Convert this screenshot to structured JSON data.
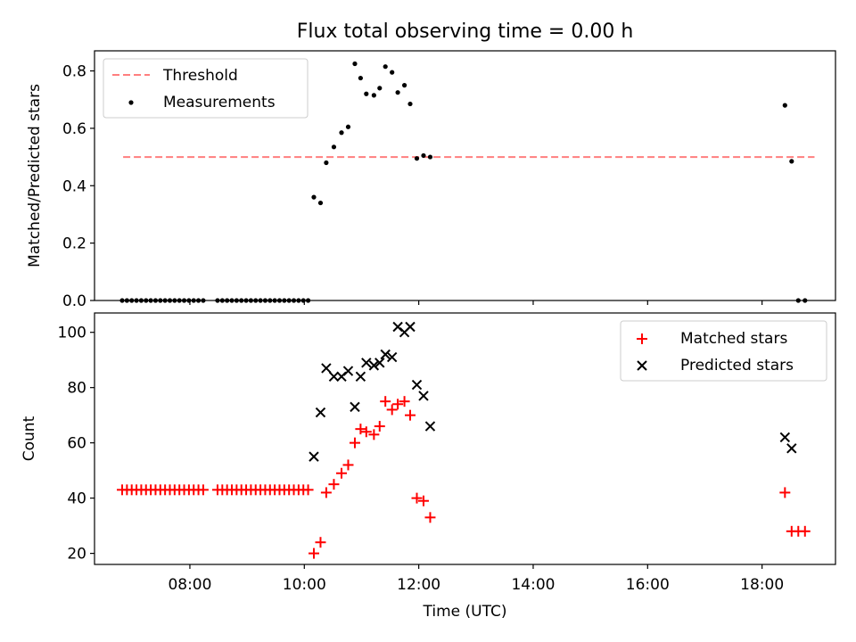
{
  "chart_data": [
    {
      "type": "scatter",
      "title": "Flux total observing time = 0.00 h",
      "ylabel": "Matched/Predicted stars",
      "xlabel": "",
      "xlim": [
        "06:20",
        "19:17"
      ],
      "ylim": [
        0,
        0.87
      ],
      "yticks": [
        "0.0",
        "0.2",
        "0.4",
        "0.6",
        "0.8"
      ],
      "legend_position": "top-left",
      "threshold": {
        "name": "Threshold",
        "value": 0.5,
        "x_range": [
          "06:50",
          "18:55"
        ],
        "color": "#ff7f7f",
        "style": "dashed"
      },
      "series": [
        {
          "name": "Measurements",
          "marker": "dot",
          "color": "#000000",
          "points": [
            [
              "06:49",
              0
            ],
            [
              "06:54",
              0
            ],
            [
              "06:59",
              0
            ],
            [
              "07:04",
              0
            ],
            [
              "07:09",
              0
            ],
            [
              "07:14",
              0
            ],
            [
              "07:19",
              0
            ],
            [
              "07:24",
              0
            ],
            [
              "07:29",
              0
            ],
            [
              "07:34",
              0
            ],
            [
              "07:39",
              0
            ],
            [
              "07:44",
              0
            ],
            [
              "07:49",
              0
            ],
            [
              "07:54",
              0
            ],
            [
              "07:59",
              0
            ],
            [
              "08:04",
              0
            ],
            [
              "08:09",
              0
            ],
            [
              "08:14",
              0
            ],
            [
              "08:29",
              0
            ],
            [
              "08:34",
              0
            ],
            [
              "08:39",
              0
            ],
            [
              "08:44",
              0
            ],
            [
              "08:49",
              0
            ],
            [
              "08:54",
              0
            ],
            [
              "08:59",
              0
            ],
            [
              "09:04",
              0
            ],
            [
              "09:09",
              0
            ],
            [
              "09:14",
              0
            ],
            [
              "09:19",
              0
            ],
            [
              "09:24",
              0
            ],
            [
              "09:29",
              0
            ],
            [
              "09:34",
              0
            ],
            [
              "09:39",
              0
            ],
            [
              "09:44",
              0
            ],
            [
              "09:49",
              0
            ],
            [
              "09:54",
              0
            ],
            [
              "09:59",
              0
            ],
            [
              "10:04",
              0
            ],
            [
              "10:10",
              0.36
            ],
            [
              "10:17",
              0.34
            ],
            [
              "10:23",
              0.48
            ],
            [
              "10:31",
              0.535
            ],
            [
              "10:39",
              0.585
            ],
            [
              "10:46",
              0.605
            ],
            [
              "10:53",
              0.825
            ],
            [
              "10:59",
              0.775
            ],
            [
              "11:05",
              0.72
            ],
            [
              "11:13",
              0.715
            ],
            [
              "11:19",
              0.74
            ],
            [
              "11:25",
              0.815
            ],
            [
              "11:32",
              0.795
            ],
            [
              "11:38",
              0.725
            ],
            [
              "11:45",
              0.75
            ],
            [
              "11:51",
              0.685
            ],
            [
              "11:58",
              0.495
            ],
            [
              "12:05",
              0.505
            ],
            [
              "12:12",
              0.5
            ],
            [
              "18:24",
              0.68
            ],
            [
              "18:31",
              0.485
            ],
            [
              "18:38",
              0
            ],
            [
              "18:45",
              0
            ]
          ]
        }
      ]
    },
    {
      "type": "scatter",
      "title": "",
      "ylabel": "Count",
      "xlabel": "Time (UTC)",
      "xlim": [
        "06:20",
        "19:17"
      ],
      "ylim": [
        16,
        107
      ],
      "yticks": [
        "20",
        "40",
        "60",
        "80",
        "100"
      ],
      "xticks": [
        "08:00",
        "10:00",
        "12:00",
        "14:00",
        "16:00",
        "18:00"
      ],
      "legend_position": "top-right",
      "series": [
        {
          "name": "Matched stars",
          "marker": "plus",
          "color": "#ff0000",
          "points": [
            [
              "06:49",
              43
            ],
            [
              "06:54",
              43
            ],
            [
              "06:59",
              43
            ],
            [
              "07:04",
              43
            ],
            [
              "07:09",
              43
            ],
            [
              "07:14",
              43
            ],
            [
              "07:19",
              43
            ],
            [
              "07:24",
              43
            ],
            [
              "07:29",
              43
            ],
            [
              "07:34",
              43
            ],
            [
              "07:39",
              43
            ],
            [
              "07:44",
              43
            ],
            [
              "07:49",
              43
            ],
            [
              "07:54",
              43
            ],
            [
              "07:59",
              43
            ],
            [
              "08:04",
              43
            ],
            [
              "08:09",
              43
            ],
            [
              "08:14",
              43
            ],
            [
              "08:29",
              43
            ],
            [
              "08:34",
              43
            ],
            [
              "08:39",
              43
            ],
            [
              "08:44",
              43
            ],
            [
              "08:49",
              43
            ],
            [
              "08:54",
              43
            ],
            [
              "08:59",
              43
            ],
            [
              "09:04",
              43
            ],
            [
              "09:09",
              43
            ],
            [
              "09:14",
              43
            ],
            [
              "09:19",
              43
            ],
            [
              "09:24",
              43
            ],
            [
              "09:29",
              43
            ],
            [
              "09:34",
              43
            ],
            [
              "09:39",
              43
            ],
            [
              "09:44",
              43
            ],
            [
              "09:49",
              43
            ],
            [
              "09:54",
              43
            ],
            [
              "09:59",
              43
            ],
            [
              "10:04",
              43
            ],
            [
              "10:10",
              20
            ],
            [
              "10:17",
              24
            ],
            [
              "10:23",
              42
            ],
            [
              "10:31",
              45
            ],
            [
              "10:39",
              49
            ],
            [
              "10:46",
              52
            ],
            [
              "10:53",
              60
            ],
            [
              "10:59",
              65
            ],
            [
              "11:05",
              64
            ],
            [
              "11:13",
              63
            ],
            [
              "11:19",
              66
            ],
            [
              "11:25",
              75
            ],
            [
              "11:32",
              72
            ],
            [
              "11:38",
              74
            ],
            [
              "11:45",
              75
            ],
            [
              "11:51",
              70
            ],
            [
              "11:58",
              40
            ],
            [
              "12:05",
              39
            ],
            [
              "12:12",
              33
            ],
            [
              "18:24",
              42
            ],
            [
              "18:31",
              28
            ],
            [
              "18:38",
              28
            ],
            [
              "18:45",
              28
            ]
          ]
        },
        {
          "name": "Predicted stars",
          "marker": "x",
          "color": "#000000",
          "points": [
            [
              "10:10",
              55
            ],
            [
              "10:17",
              71
            ],
            [
              "10:23",
              87
            ],
            [
              "10:31",
              84
            ],
            [
              "10:39",
              84
            ],
            [
              "10:46",
              86
            ],
            [
              "10:53",
              73
            ],
            [
              "10:59",
              84
            ],
            [
              "11:05",
              89
            ],
            [
              "11:13",
              88
            ],
            [
              "11:19",
              89
            ],
            [
              "11:25",
              92
            ],
            [
              "11:32",
              91
            ],
            [
              "11:38",
              102
            ],
            [
              "11:45",
              100
            ],
            [
              "11:51",
              102
            ],
            [
              "11:58",
              81
            ],
            [
              "12:05",
              77
            ],
            [
              "12:12",
              66
            ],
            [
              "18:24",
              62
            ],
            [
              "18:31",
              58
            ]
          ]
        }
      ]
    }
  ]
}
